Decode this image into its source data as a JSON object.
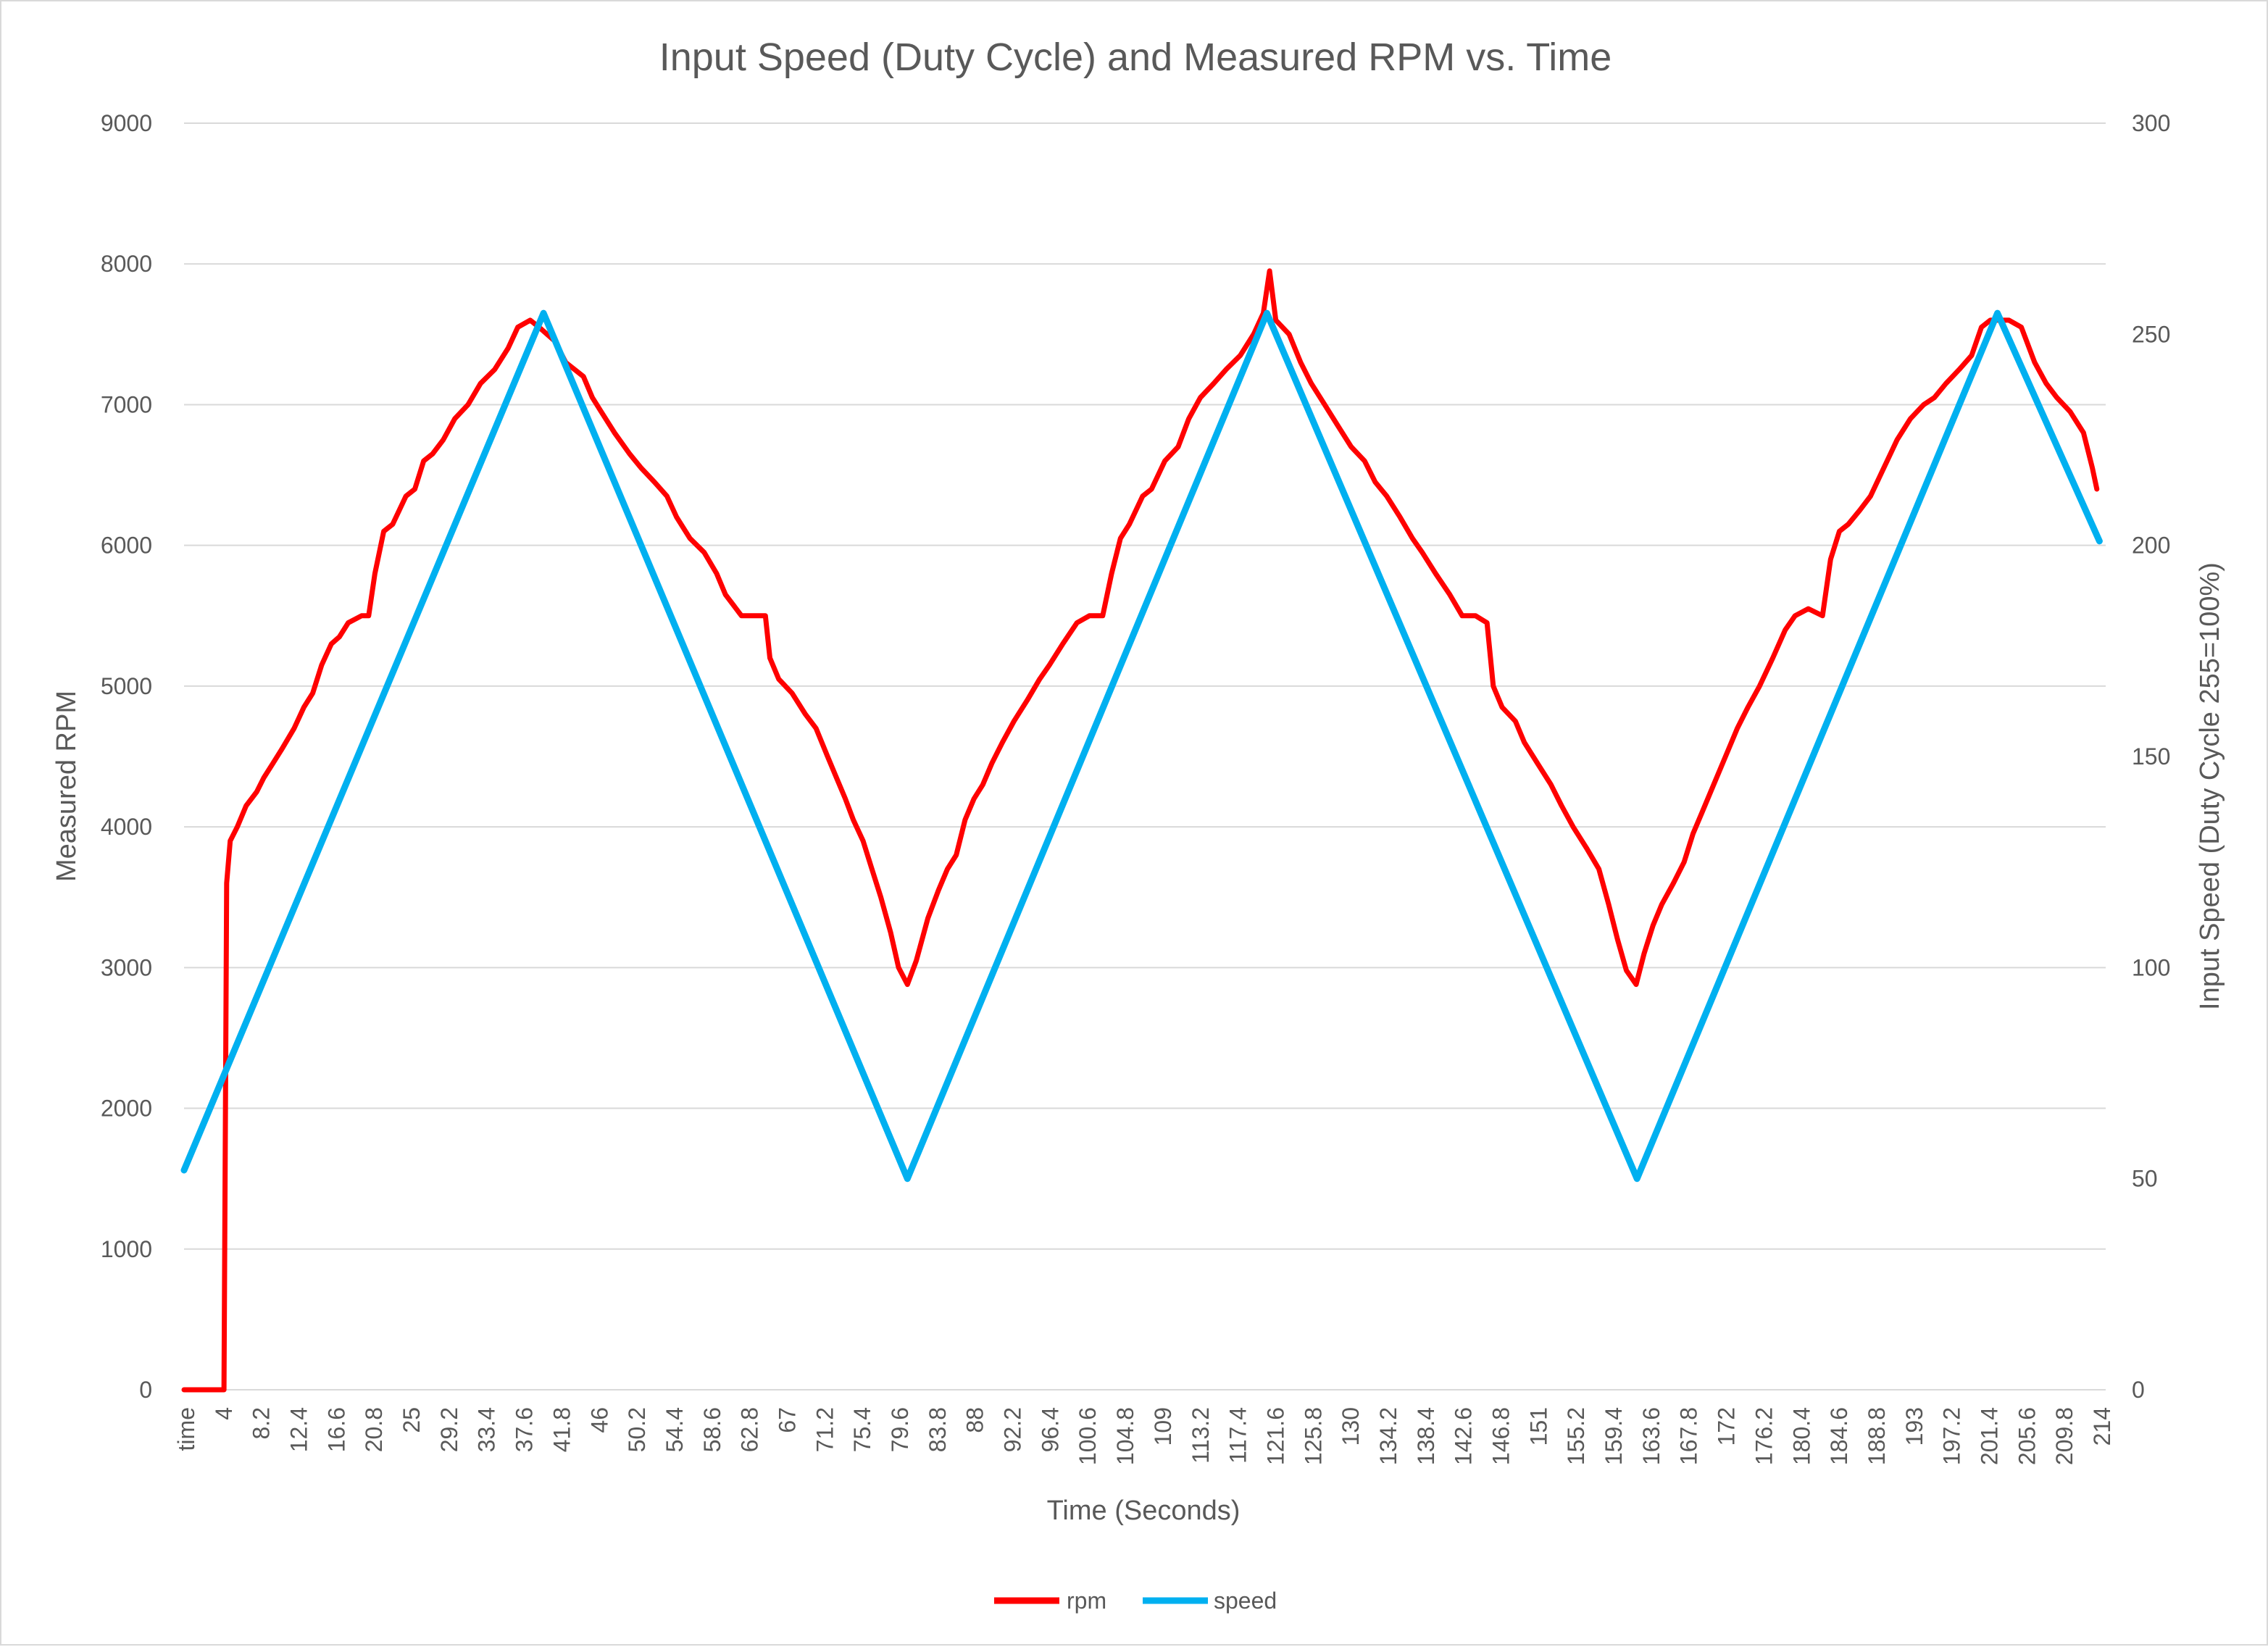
{
  "chart_data": {
    "type": "line",
    "title": "Input Speed (Duty Cycle) and Measured RPM vs. Time",
    "xlabel": "Time (Seconds)",
    "ylabel": "Measured RPM",
    "y2label": "Input Speed (Duty Cycle 255=100%)",
    "x_ticks": [
      "time",
      "4",
      "8.2",
      "12.4",
      "16.6",
      "20.8",
      "25",
      "29.2",
      "33.4",
      "37.6",
      "41.8",
      "46",
      "50.2",
      "54.4",
      "58.6",
      "62.8",
      "67",
      "71.2",
      "75.4",
      "79.6",
      "83.8",
      "88",
      "92.2",
      "96.4",
      "100.6",
      "104.8",
      "109",
      "113.2",
      "117.4",
      "121.6",
      "125.8",
      "130",
      "134.2",
      "138.4",
      "142.6",
      "146.8",
      "151",
      "155.2",
      "159.4",
      "163.6",
      "167.8",
      "172",
      "176.2",
      "180.4",
      "184.6",
      "188.8",
      "193",
      "197.2",
      "201.4",
      "205.6",
      "209.8",
      "214"
    ],
    "y_ticks": [
      "0",
      "1000",
      "2000",
      "3000",
      "4000",
      "5000",
      "6000",
      "7000",
      "8000",
      "9000"
    ],
    "y2_ticks": [
      "0",
      "50",
      "100",
      "150",
      "200",
      "250",
      "300"
    ],
    "xlim": [
      0,
      216.5
    ],
    "ylim": [
      0,
      9000
    ],
    "y2lim": [
      0,
      300
    ],
    "grid": true,
    "legend_position": "bottom",
    "colors": {
      "rpm": "#ff0000",
      "speed": "#00b0f0",
      "grid": "#d9d9d9",
      "text": "#595959"
    },
    "series": [
      {
        "name": "rpm",
        "axis": "left",
        "points": [
          [
            0,
            0
          ],
          [
            4.5,
            0
          ],
          [
            4.8,
            3600
          ],
          [
            5.2,
            3900
          ],
          [
            6,
            4000
          ],
          [
            7,
            4150
          ],
          [
            8.2,
            4250
          ],
          [
            9,
            4350
          ],
          [
            10,
            4450
          ],
          [
            11,
            4550
          ],
          [
            12.4,
            4700
          ],
          [
            13.5,
            4850
          ],
          [
            14.5,
            4950
          ],
          [
            15.5,
            5150
          ],
          [
            16.6,
            5300
          ],
          [
            17.5,
            5350
          ],
          [
            18.5,
            5450
          ],
          [
            20,
            5500
          ],
          [
            20.8,
            5500
          ],
          [
            21.5,
            5800
          ],
          [
            22.5,
            6100
          ],
          [
            23.5,
            6150
          ],
          [
            25,
            6350
          ],
          [
            26,
            6400
          ],
          [
            27,
            6600
          ],
          [
            28,
            6650
          ],
          [
            29.2,
            6750
          ],
          [
            30.5,
            6900
          ],
          [
            32,
            7000
          ],
          [
            33.4,
            7150
          ],
          [
            35,
            7250
          ],
          [
            36.5,
            7400
          ],
          [
            37.6,
            7550
          ],
          [
            39,
            7600
          ],
          [
            40,
            7550
          ],
          [
            41.8,
            7450
          ],
          [
            43,
            7300
          ],
          [
            45,
            7200
          ],
          [
            46,
            7050
          ],
          [
            47,
            6950
          ],
          [
            48.5,
            6800
          ],
          [
            50.2,
            6650
          ],
          [
            51.5,
            6550
          ],
          [
            53,
            6450
          ],
          [
            54.4,
            6350
          ],
          [
            55.5,
            6200
          ],
          [
            57,
            6050
          ],
          [
            58.6,
            5950
          ],
          [
            60,
            5800
          ],
          [
            61,
            5650
          ],
          [
            62.8,
            5500
          ],
          [
            64,
            5500
          ],
          [
            65.5,
            5500
          ],
          [
            66,
            5200
          ],
          [
            67,
            5050
          ],
          [
            68.5,
            4950
          ],
          [
            70,
            4800
          ],
          [
            71.2,
            4700
          ],
          [
            72.5,
            4500
          ],
          [
            73.5,
            4350
          ],
          [
            74.5,
            4200
          ],
          [
            75.4,
            4050
          ],
          [
            76.5,
            3900
          ],
          [
            77.5,
            3700
          ],
          [
            78.5,
            3500
          ],
          [
            79.6,
            3250
          ],
          [
            80.5,
            3000
          ],
          [
            81.5,
            2880
          ],
          [
            82.5,
            3050
          ],
          [
            83.8,
            3350
          ],
          [
            85,
            3550
          ],
          [
            86,
            3700
          ],
          [
            87,
            3800
          ],
          [
            88,
            4050
          ],
          [
            89,
            4200
          ],
          [
            90,
            4300
          ],
          [
            91,
            4450
          ],
          [
            92.2,
            4600
          ],
          [
            93.5,
            4750
          ],
          [
            95,
            4900
          ],
          [
            96.4,
            5050
          ],
          [
            97.5,
            5150
          ],
          [
            99,
            5300
          ],
          [
            100.6,
            5450
          ],
          [
            102,
            5500
          ],
          [
            103.5,
            5500
          ],
          [
            104.5,
            5800
          ],
          [
            105.5,
            6050
          ],
          [
            106.5,
            6150
          ],
          [
            108,
            6350
          ],
          [
            109,
            6400
          ],
          [
            110.5,
            6600
          ],
          [
            112,
            6700
          ],
          [
            113.2,
            6900
          ],
          [
            114.5,
            7050
          ],
          [
            116,
            7150
          ],
          [
            117.4,
            7250
          ],
          [
            119,
            7350
          ],
          [
            120.5,
            7500
          ],
          [
            121.6,
            7650
          ],
          [
            122.3,
            7950
          ],
          [
            123,
            7600
          ],
          [
            124.5,
            7500
          ],
          [
            125.8,
            7300
          ],
          [
            127,
            7150
          ],
          [
            128.5,
            7000
          ],
          [
            130,
            6850
          ],
          [
            131.5,
            6700
          ],
          [
            133,
            6600
          ],
          [
            134.2,
            6450
          ],
          [
            135.5,
            6350
          ],
          [
            137,
            6200
          ],
          [
            138.4,
            6050
          ],
          [
            139.5,
            5950
          ],
          [
            141,
            5800
          ],
          [
            142.6,
            5650
          ],
          [
            144,
            5500
          ],
          [
            145.5,
            5500
          ],
          [
            146.8,
            5450
          ],
          [
            147.5,
            5000
          ],
          [
            148.5,
            4850
          ],
          [
            150,
            4750
          ],
          [
            151,
            4600
          ],
          [
            152.5,
            4450
          ],
          [
            154,
            4300
          ],
          [
            155.2,
            4150
          ],
          [
            156.5,
            4000
          ],
          [
            158,
            3850
          ],
          [
            159.4,
            3700
          ],
          [
            160.5,
            3450
          ],
          [
            161.5,
            3200
          ],
          [
            162.5,
            2980
          ],
          [
            163.6,
            2880
          ],
          [
            164.5,
            3100
          ],
          [
            165.5,
            3300
          ],
          [
            166.5,
            3450
          ],
          [
            167.8,
            3600
          ],
          [
            169,
            3750
          ],
          [
            170,
            3950
          ],
          [
            171,
            4100
          ],
          [
            172,
            4250
          ],
          [
            173,
            4400
          ],
          [
            174,
            4550
          ],
          [
            175,
            4700
          ],
          [
            176.2,
            4850
          ],
          [
            177.5,
            5000
          ],
          [
            179,
            5200
          ],
          [
            180.4,
            5400
          ],
          [
            181.5,
            5500
          ],
          [
            183,
            5550
          ],
          [
            184.6,
            5500
          ],
          [
            185.5,
            5900
          ],
          [
            186.5,
            6100
          ],
          [
            187.5,
            6150
          ],
          [
            188.8,
            6250
          ],
          [
            190,
            6350
          ],
          [
            191.5,
            6550
          ],
          [
            193,
            6750
          ],
          [
            194.5,
            6900
          ],
          [
            196,
            7000
          ],
          [
            197.2,
            7050
          ],
          [
            198.5,
            7150
          ],
          [
            200,
            7250
          ],
          [
            201.4,
            7350
          ],
          [
            202.5,
            7550
          ],
          [
            203.5,
            7600
          ],
          [
            205.6,
            7600
          ],
          [
            207,
            7550
          ],
          [
            208.5,
            7300
          ],
          [
            209.8,
            7150
          ],
          [
            211,
            7050
          ],
          [
            212.5,
            6950
          ],
          [
            214,
            6800
          ],
          [
            215,
            6550
          ],
          [
            215.5,
            6400
          ]
        ]
      },
      {
        "name": "speed",
        "axis": "right",
        "points": [
          [
            0,
            52
          ],
          [
            40.5,
            255
          ],
          [
            81.5,
            50
          ],
          [
            122,
            255
          ],
          [
            163.7,
            50
          ],
          [
            204.3,
            255
          ],
          [
            215.8,
            201
          ]
        ]
      }
    ]
  }
}
